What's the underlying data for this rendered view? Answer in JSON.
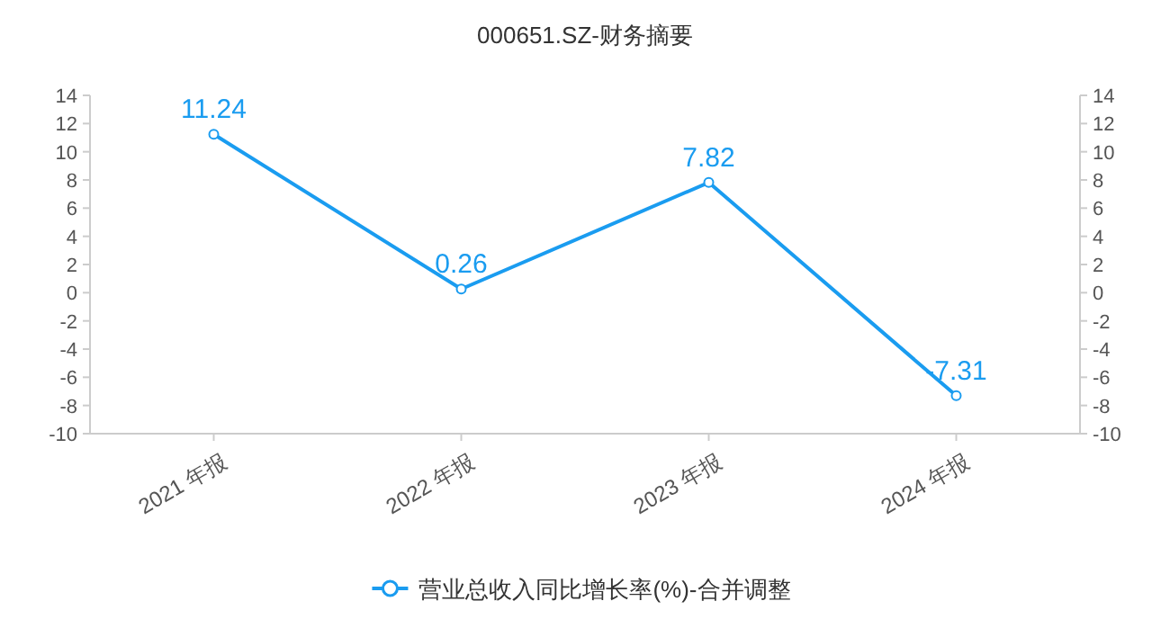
{
  "chart_data": {
    "type": "line",
    "title": "000651.SZ-财务摘要",
    "categories": [
      "2021 年报",
      "2022 年报",
      "2023 年报",
      "2024 年报"
    ],
    "series": [
      {
        "name": "营业总收入同比增长率(%)-合并调整",
        "color": "#1a9cf0",
        "values": [
          11.24,
          0.26,
          7.82,
          -7.31
        ]
      }
    ],
    "ylim": [
      -10,
      14
    ],
    "yticks": [
      -10,
      -8,
      -6,
      -4,
      -2,
      0,
      2,
      4,
      6,
      8,
      10,
      12,
      14
    ],
    "y2lim": [
      -10,
      14
    ],
    "y2ticks": [
      -10,
      -8,
      -6,
      -4,
      -2,
      0,
      2,
      4,
      6,
      8,
      10,
      12,
      14
    ],
    "data_labels": true,
    "marker": "circle",
    "line_style": "solid",
    "legend": "bottom",
    "grid": false
  }
}
